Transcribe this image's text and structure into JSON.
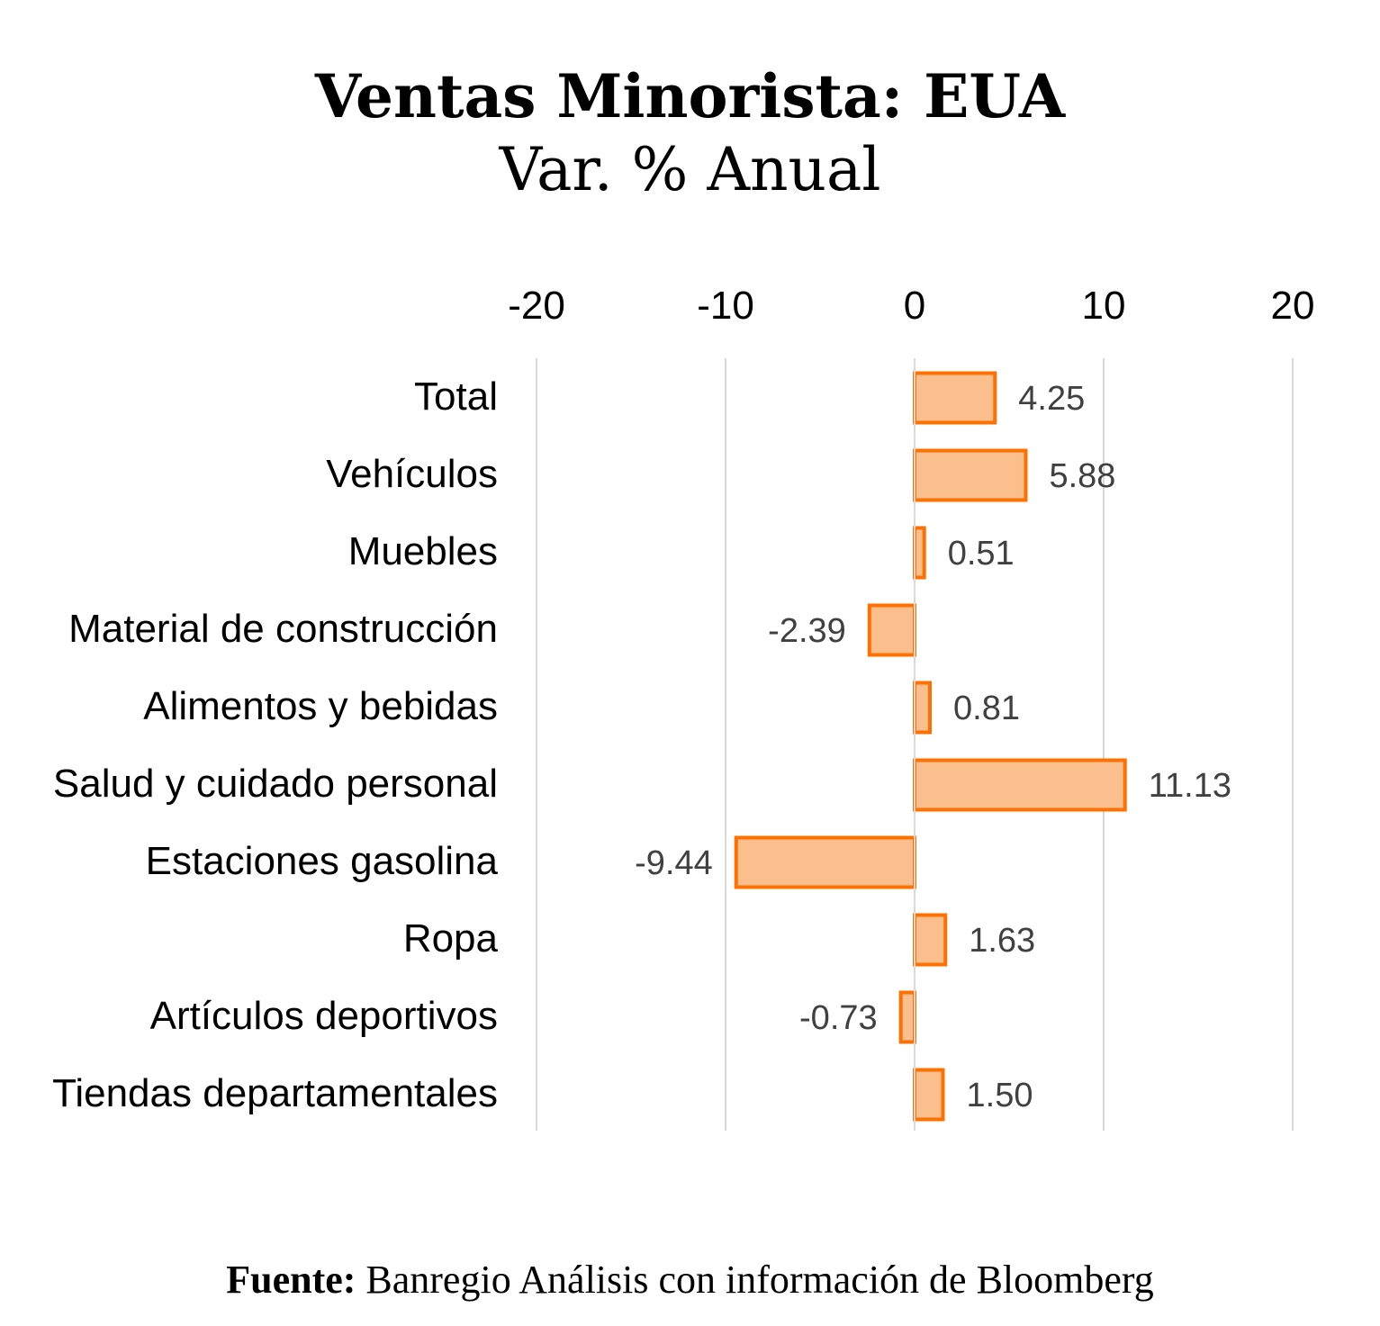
{
  "chart_data": {
    "type": "bar",
    "orientation": "horizontal",
    "title": "Ventas Minorista: EUA",
    "subtitle": "Var. % Anual",
    "categories": [
      "Total",
      "Vehículos",
      "Muebles",
      "Material de construcción",
      "Alimentos y bebidas",
      "Salud y cuidado personal",
      "Estaciones gasolina",
      "Ropa",
      "Artículos deportivos",
      "Tiendas departamentales"
    ],
    "values": [
      4.25,
      5.88,
      0.51,
      -2.39,
      0.81,
      11.13,
      -9.44,
      1.63,
      -0.73,
      1.5
    ],
    "data_labels": [
      "4.25",
      "5.88",
      "0.51",
      "-2.39",
      "0.81",
      "11.13",
      "-9.44",
      "1.63",
      "-0.73",
      "1.50"
    ],
    "xlim": [
      -20,
      20
    ],
    "xticks": [
      -20,
      -10,
      0,
      10,
      20
    ],
    "xtick_labels": [
      "-20",
      "-10",
      "0",
      "10",
      "20"
    ],
    "axis_position": "top",
    "grid": true,
    "legend": "none",
    "colors": {
      "bar_fill": "#fbbe8d",
      "bar_stroke": "#ff7000"
    }
  },
  "source": {
    "label": "Fuente:",
    "text": "Banregio Análisis con información de Bloomberg"
  }
}
